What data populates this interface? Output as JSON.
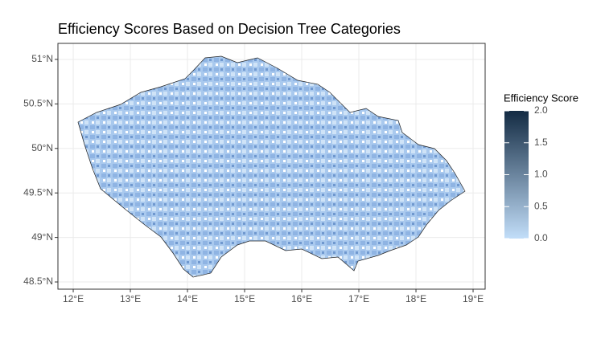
{
  "chart_data": {
    "type": "choropleth",
    "title": "Efficiency Scores Based on Decision Tree Categories",
    "xlim": [
      11.732,
      19.211
    ],
    "ylim": [
      48.419,
      51.18
    ],
    "xticks": [
      {
        "value": 12,
        "label": "12°E"
      },
      {
        "value": 13,
        "label": "13°E"
      },
      {
        "value": 14,
        "label": "14°E"
      },
      {
        "value": 15,
        "label": "15°E"
      },
      {
        "value": 16,
        "label": "16°E"
      },
      {
        "value": 17,
        "label": "17°E"
      },
      {
        "value": 18,
        "label": "18°E"
      },
      {
        "value": 19,
        "label": "19°E"
      }
    ],
    "yticks": [
      {
        "value": 48.5,
        "label": "48.5°N"
      },
      {
        "value": 49,
        "label": "49°N"
      },
      {
        "value": 49.5,
        "label": "49.5°N"
      },
      {
        "value": 50,
        "label": "50°N"
      },
      {
        "value": 50.5,
        "label": "50.5°N"
      },
      {
        "value": 51,
        "label": "51°N"
      }
    ],
    "grid": true,
    "legend": {
      "title": "Efficiency Score",
      "limits": [
        0,
        2
      ],
      "low_color": "#c2def9",
      "high_color": "#132b43",
      "ticks": [
        {
          "value": 0,
          "label": "0.0"
        },
        {
          "value": 0.5,
          "label": "0.5"
        },
        {
          "value": 1,
          "label": "1.0"
        },
        {
          "value": 1.5,
          "label": "1.5"
        },
        {
          "value": 2,
          "label": "2.0"
        }
      ]
    }
  }
}
